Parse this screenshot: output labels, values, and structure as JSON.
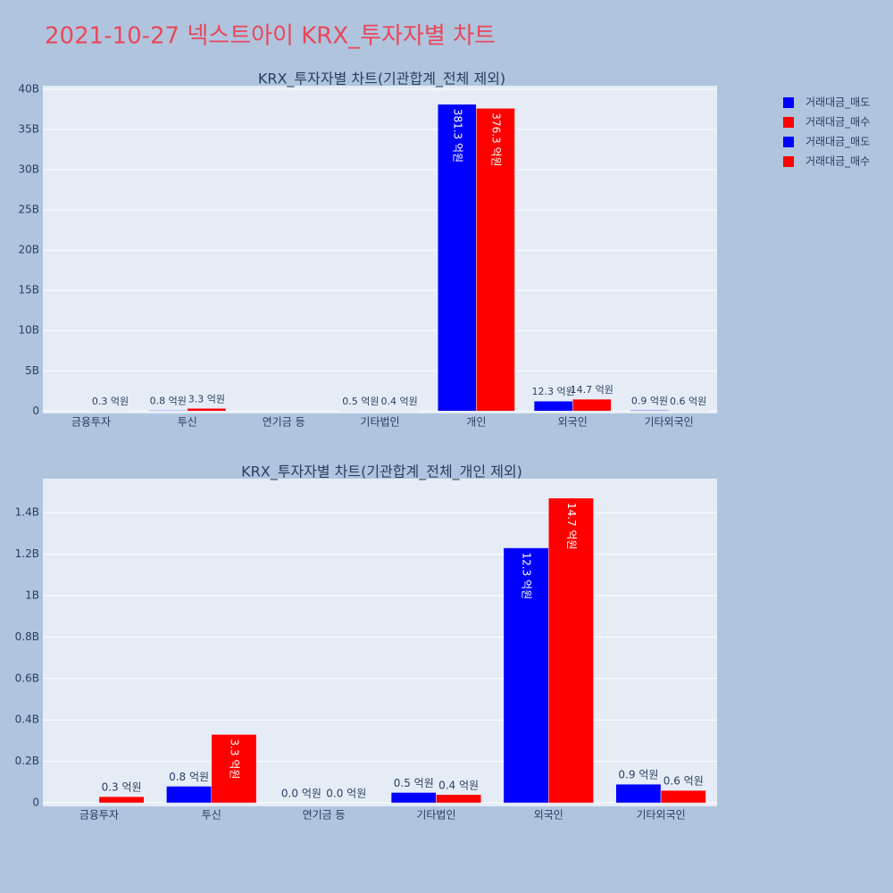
{
  "title": "2021-10-27 넥스트아이 KRX_투자자별 차트",
  "chart_data": [
    {
      "type": "bar",
      "title": "KRX_투자자별 차트(기관합계_전체 제외)",
      "categories": [
        "금융투자",
        "투신",
        "연기금 등",
        "기타법인",
        "개인",
        "외국인",
        "기타외국인"
      ],
      "series": [
        {
          "name": "거래대금_매도",
          "color": "#0000ff",
          "values": [
            null,
            80000000,
            0,
            50000000,
            38130000000,
            1230000000,
            90000000
          ],
          "value_labels": [
            null,
            "0.8 억원",
            null,
            "0.5 억원",
            "381.3 억원",
            "12.3 억원",
            "0.9 억원"
          ]
        },
        {
          "name": "거래대금_매수",
          "color": "#ff0000",
          "values": [
            30000000,
            330000000,
            0,
            40000000,
            37630000000,
            1470000000,
            60000000
          ],
          "value_labels": [
            "0.3 억원",
            "3.3 억원",
            null,
            "0.4 억원",
            "376.3 억원",
            "14.7 억원",
            "0.6 억원"
          ]
        }
      ],
      "ylim": [
        -300000000,
        40440000000
      ],
      "yticks": [
        0,
        {
          "value": 5000000000,
          "label": "5B"
        },
        {
          "value": 10000000000,
          "label": "10B"
        },
        {
          "value": 15000000000,
          "label": "15B"
        },
        {
          "value": 20000000000,
          "label": "20B"
        },
        {
          "value": 25000000000,
          "label": "25B"
        },
        {
          "value": 30000000000,
          "label": "30B"
        },
        {
          "value": 35000000000,
          "label": "35B"
        },
        {
          "value": 40000000000,
          "label": "40B"
        }
      ],
      "grid": true
    },
    {
      "type": "bar",
      "title": "KRX_투자자별 차트(기관합계_전체_개인 제외)",
      "categories": [
        "금융투자",
        "투신",
        "연기금 등",
        "기타법인",
        "외국인",
        "기타외국인"
      ],
      "series": [
        {
          "name": "거래대금_매도",
          "color": "#0000ff",
          "values": [
            null,
            80000000,
            0,
            50000000,
            1230000000,
            90000000
          ],
          "value_labels": [
            null,
            "0.8 억원",
            "0.0 억원",
            "0.5 억원",
            "12.3 억원",
            "0.9 억원"
          ]
        },
        {
          "name": "거래대금_매수",
          "color": "#ff0000",
          "values": [
            30000000,
            330000000,
            0,
            40000000,
            1470000000,
            60000000
          ],
          "value_labels": [
            "0.3 억원",
            "3.3 억원",
            "0.0 억원",
            "0.4 억원",
            "14.7 억원",
            "0.6 억원"
          ]
        }
      ],
      "ylim": [
        -17000000,
        1564000000
      ],
      "yticks": [
        0,
        {
          "value": 200000000,
          "label": "0.2B"
        },
        {
          "value": 400000000,
          "label": "0.4B"
        },
        {
          "value": 600000000,
          "label": "0.6B"
        },
        {
          "value": 800000000,
          "label": "0.8B"
        },
        {
          "value": 1000000000,
          "label": "1B"
        },
        {
          "value": 1200000000,
          "label": "1.2B"
        },
        {
          "value": 1400000000,
          "label": "1.4B"
        }
      ],
      "grid": true
    }
  ]
}
